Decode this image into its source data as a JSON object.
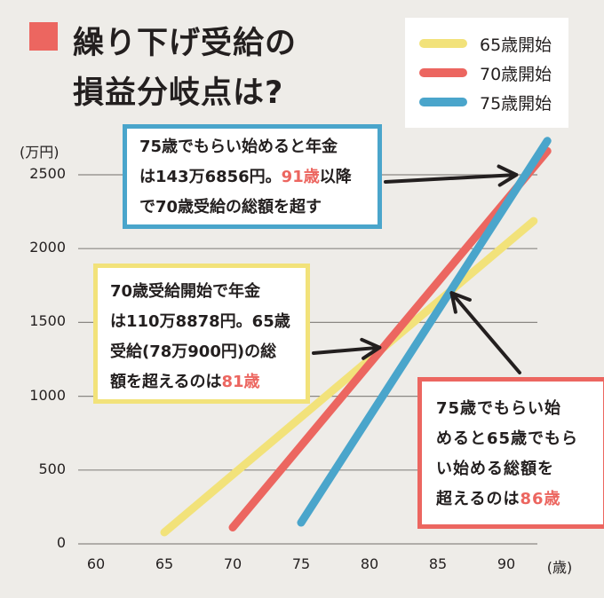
{
  "title": {
    "line1": "繰り下げ受給の",
    "line2": "損益分岐点は?",
    "marker_color": "#ec6660"
  },
  "chart_data": {
    "type": "line",
    "xlabel": "(歳)",
    "ylabel": "(万円)",
    "xlim": [
      60,
      90
    ],
    "ylim": [
      0,
      2500
    ],
    "x_ticks": [
      "60",
      "65",
      "70",
      "75",
      "80",
      "85",
      "90"
    ],
    "y_ticks": [
      "0",
      "500",
      "1000",
      "1500",
      "2000",
      "2500"
    ],
    "grid": true,
    "legend": "top-right",
    "series": [
      {
        "name": "65歳開始",
        "color": "#f2e27a",
        "points": [
          [
            65,
            78
          ],
          [
            92,
            2187
          ]
        ]
      },
      {
        "name": "70歳開始",
        "color": "#ec6660",
        "points": [
          [
            70,
            111
          ],
          [
            93,
            2661
          ]
        ]
      },
      {
        "name": "75歳開始",
        "color": "#4aa5cb",
        "points": [
          [
            75,
            144
          ],
          [
            93,
            2730
          ]
        ]
      }
    ],
    "annotations": [
      {
        "id": "blue",
        "border": "#4aa5cb",
        "lines": [
          "75歳でもらい始めると年金",
          "は143万6856円。",
          "91歳",
          "以降",
          "で70歳受給の総額を超す"
        ],
        "point": [
          91,
          2500
        ]
      },
      {
        "id": "yellow",
        "border": "#f2e27a",
        "lines": [
          "70歳受給開始で年金",
          "は110万8878円。65歳",
          "受給(78万900円)の総",
          "額を超えるのは",
          "81歳"
        ],
        "point": [
          81,
          1330
        ]
      },
      {
        "id": "red",
        "border": "#ec6660",
        "lines": [
          "75歳でもらい始",
          "めると65歳でもら",
          "い始める総額を",
          "超えるのは",
          "86歳"
        ],
        "point": [
          86,
          1700
        ]
      }
    ]
  }
}
